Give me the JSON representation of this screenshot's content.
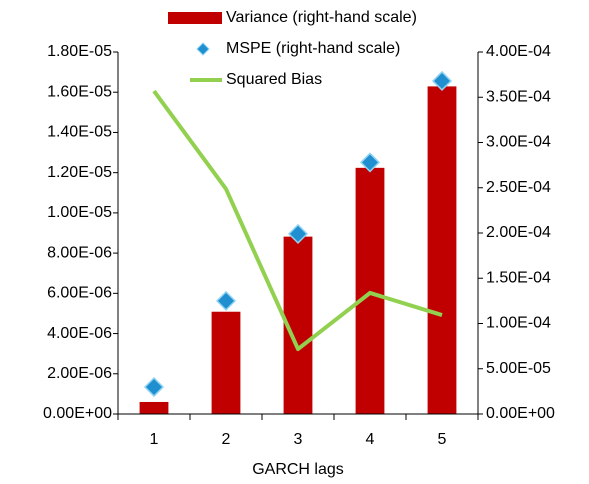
{
  "chart_data": {
    "type": "combo",
    "categories": [
      "1",
      "2",
      "3",
      "4",
      "5"
    ],
    "x_label": "GARCH lags",
    "series": [
      {
        "name": "Variance (right-hand scale)",
        "type": "bar",
        "axis": "y2",
        "color": "#c00000",
        "values": [
          1.33e-05,
          0.000113,
          0.000196,
          0.000272,
          0.000362
        ]
      },
      {
        "name": "MSPE (right-hand scale)",
        "type": "scatter",
        "axis": "y2",
        "color": "#1f8fd0",
        "values": [
          2.98e-05,
          0.000125,
          0.000199,
          0.000278,
          0.000368
        ]
      },
      {
        "name": "Squared Bias",
        "type": "line",
        "axis": "y",
        "color": "#92d050",
        "values": [
          1.606e-05,
          1.119e-05,
          3.23e-06,
          6.02e-06,
          4.92e-06
        ]
      }
    ],
    "ylim": [
      0,
      1.8e-05
    ],
    "yticks": [
      {
        "value": 0,
        "label": "0.00E+00"
      },
      {
        "value": 2e-06,
        "label": "2.00E-06"
      },
      {
        "value": 4e-06,
        "label": "4.00E-06"
      },
      {
        "value": 6e-06,
        "label": "6.00E-06"
      },
      {
        "value": 8e-06,
        "label": "8.00E-06"
      },
      {
        "value": 1e-05,
        "label": "1.00E-05"
      },
      {
        "value": 1.2e-05,
        "label": "1.20E-05"
      },
      {
        "value": 1.4e-05,
        "label": "1.40E-05"
      },
      {
        "value": 1.6e-05,
        "label": "1.60E-05"
      },
      {
        "value": 1.8e-05,
        "label": "1.80E-05"
      }
    ],
    "y2lim": [
      0,
      0.0004
    ],
    "y2ticks": [
      {
        "value": 0,
        "label": "0.00E+00"
      },
      {
        "value": 5e-05,
        "label": "5.00E-05"
      },
      {
        "value": 0.0001,
        "label": "1.00E-04"
      },
      {
        "value": 0.00015,
        "label": "1.50E-04"
      },
      {
        "value": 0.0002,
        "label": "2.00E-04"
      },
      {
        "value": 0.00025,
        "label": "2.50E-04"
      },
      {
        "value": 0.0003,
        "label": "3.00E-04"
      },
      {
        "value": 0.00035,
        "label": "3.50E-04"
      },
      {
        "value": 0.0004,
        "label": "4.00E-04"
      }
    ]
  }
}
